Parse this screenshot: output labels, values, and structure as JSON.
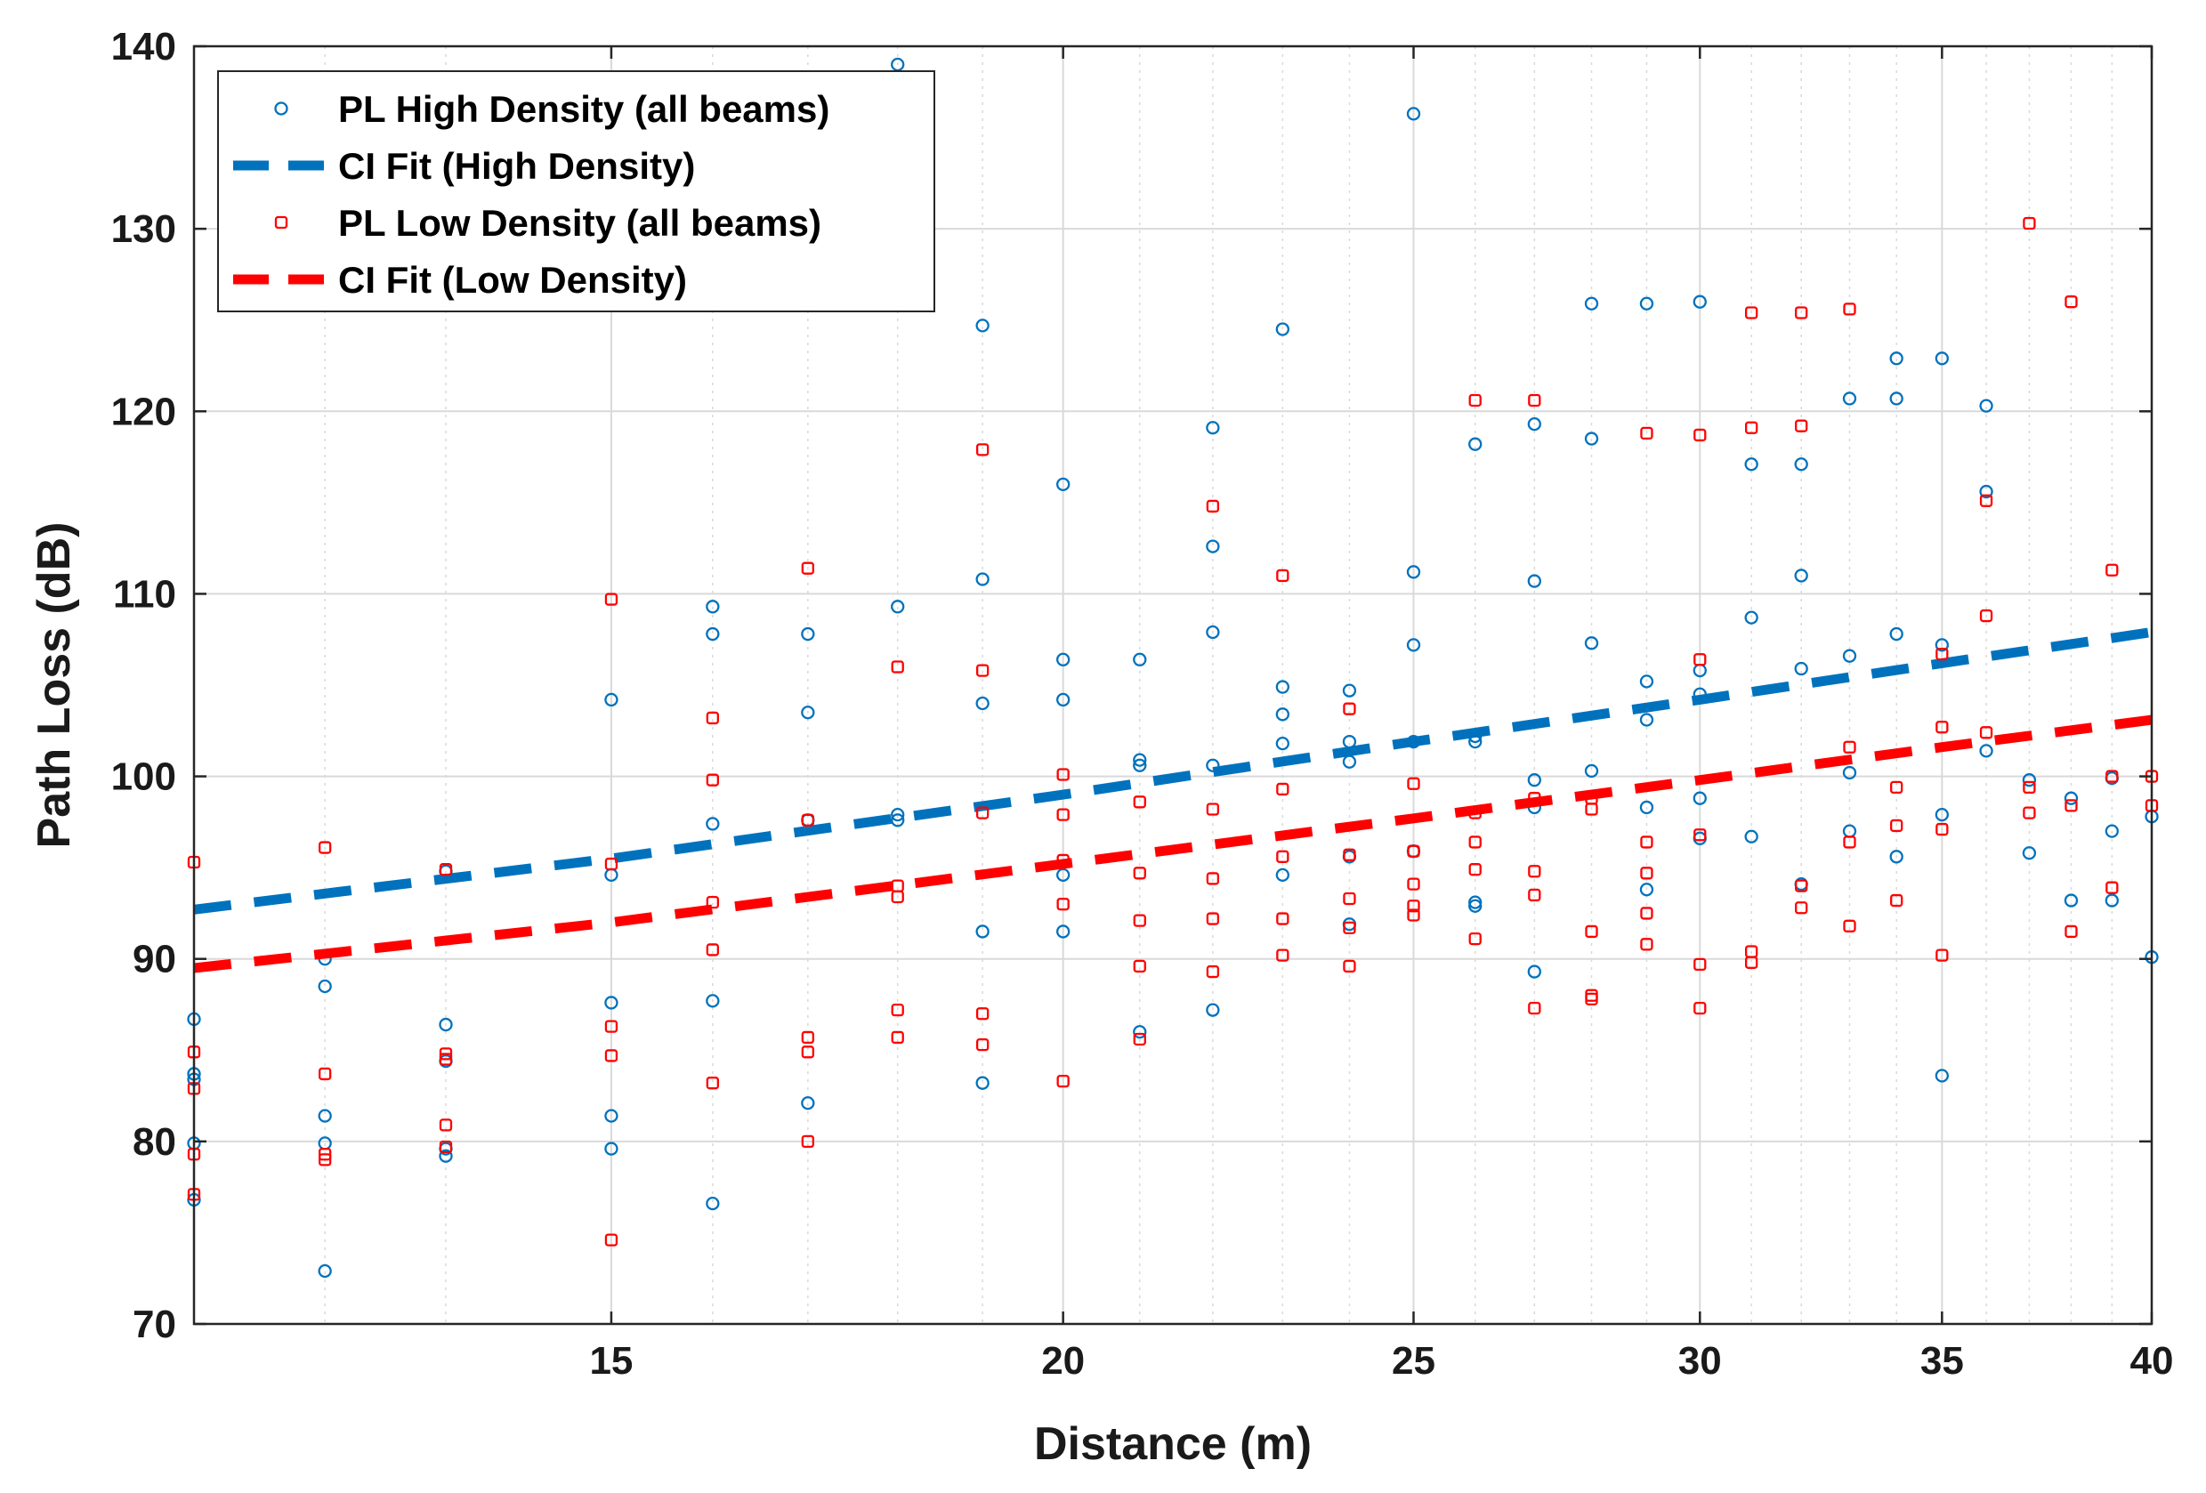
{
  "chart_data": {
    "type": "scatter",
    "title": "",
    "xlabel": "Distance (m)",
    "ylabel": "Path Loss (dB)",
    "xscale": "log",
    "xlim": [
      11.5,
      40
    ],
    "ylim": [
      70,
      140
    ],
    "xticks": [
      15,
      20,
      25,
      30,
      35,
      40
    ],
    "xtick_labels": [
      "15",
      "20",
      "25",
      "30",
      "35",
      "40"
    ],
    "yticks": [
      70,
      80,
      90,
      100,
      110,
      120,
      130,
      140
    ],
    "ytick_labels": [
      "70",
      "80",
      "90",
      "100",
      "110",
      "120",
      "130",
      "140"
    ],
    "minor_x_gridlines": [
      11.5,
      12.5,
      13.5,
      16,
      17,
      18,
      19,
      21,
      22,
      23,
      24,
      26,
      27,
      28,
      29,
      31,
      32,
      33,
      34,
      36,
      37,
      38,
      39
    ],
    "grid": true,
    "legend_position": "top-left",
    "colors": {
      "high": "#0072bd",
      "low": "#ff0000",
      "grid": "#d9d9d9",
      "axis": "#262626"
    },
    "series": [
      {
        "name": "PL High Density (all beams)",
        "kind": "points",
        "marker": "circle",
        "color": "#0072bd",
        "points": [
          [
            11.5,
            86.7
          ],
          [
            11.5,
            83.7
          ],
          [
            11.5,
            83.4
          ],
          [
            11.5,
            79.9
          ],
          [
            11.5,
            76.8
          ],
          [
            12.5,
            90.0
          ],
          [
            12.5,
            88.5
          ],
          [
            12.5,
            81.4
          ],
          [
            12.5,
            79.9
          ],
          [
            12.5,
            72.9
          ],
          [
            13.5,
            94.8
          ],
          [
            13.5,
            86.4
          ],
          [
            13.5,
            84.4
          ],
          [
            13.5,
            79.6
          ],
          [
            13.5,
            79.2
          ],
          [
            15,
            104.2
          ],
          [
            15,
            94.6
          ],
          [
            15,
            87.6
          ],
          [
            15,
            81.4
          ],
          [
            15,
            79.6
          ],
          [
            16,
            109.3
          ],
          [
            16,
            107.8
          ],
          [
            16,
            97.4
          ],
          [
            16,
            87.7
          ],
          [
            16,
            76.6
          ],
          [
            17,
            107.8
          ],
          [
            17,
            103.5
          ],
          [
            17,
            97.6
          ],
          [
            17,
            82.1
          ],
          [
            18,
            139.0
          ],
          [
            18,
            109.3
          ],
          [
            18,
            97.9
          ],
          [
            18,
            97.6
          ],
          [
            19,
            124.7
          ],
          [
            19,
            110.8
          ],
          [
            19,
            104.0
          ],
          [
            19,
            91.5
          ],
          [
            19,
            83.2
          ],
          [
            20,
            116.0
          ],
          [
            20,
            106.4
          ],
          [
            20,
            104.2
          ],
          [
            20,
            94.6
          ],
          [
            20,
            91.5
          ],
          [
            21,
            106.4
          ],
          [
            21,
            100.9
          ],
          [
            21,
            100.6
          ],
          [
            21,
            86.0
          ],
          [
            22,
            119.1
          ],
          [
            22,
            112.6
          ],
          [
            22,
            107.9
          ],
          [
            22,
            100.6
          ],
          [
            22,
            87.2
          ],
          [
            23,
            124.5
          ],
          [
            23,
            104.9
          ],
          [
            23,
            103.4
          ],
          [
            23,
            101.8
          ],
          [
            23,
            94.6
          ],
          [
            24,
            104.7
          ],
          [
            24,
            101.9
          ],
          [
            24,
            100.8
          ],
          [
            24,
            95.6
          ],
          [
            24,
            91.9
          ],
          [
            25,
            136.3
          ],
          [
            25,
            111.2
          ],
          [
            25,
            107.2
          ],
          [
            25,
            101.9
          ],
          [
            25,
            95.9
          ],
          [
            26,
            118.2
          ],
          [
            26,
            102.2
          ],
          [
            26,
            101.9
          ],
          [
            26,
            93.1
          ],
          [
            26,
            92.9
          ],
          [
            27,
            119.3
          ],
          [
            27,
            110.7
          ],
          [
            27,
            99.8
          ],
          [
            27,
            98.3
          ],
          [
            27,
            89.3
          ],
          [
            28,
            125.9
          ],
          [
            28,
            118.5
          ],
          [
            28,
            107.3
          ],
          [
            28,
            100.3
          ],
          [
            29,
            125.9
          ],
          [
            29,
            105.2
          ],
          [
            29,
            103.1
          ],
          [
            29,
            98.3
          ],
          [
            29,
            93.8
          ],
          [
            30,
            126.0
          ],
          [
            30,
            105.8
          ],
          [
            30,
            104.5
          ],
          [
            30,
            98.8
          ],
          [
            30,
            96.6
          ],
          [
            31,
            117.1
          ],
          [
            31,
            108.7
          ],
          [
            31,
            96.7
          ],
          [
            32,
            117.1
          ],
          [
            32,
            111.0
          ],
          [
            32,
            105.9
          ],
          [
            32,
            94.1
          ],
          [
            33,
            120.7
          ],
          [
            33,
            106.6
          ],
          [
            33,
            100.2
          ],
          [
            33,
            97.0
          ],
          [
            34,
            122.9
          ],
          [
            34,
            120.7
          ],
          [
            34,
            107.8
          ],
          [
            34,
            95.6
          ],
          [
            35,
            122.9
          ],
          [
            35,
            107.2
          ],
          [
            35,
            97.9
          ],
          [
            35,
            83.6
          ],
          [
            36,
            120.3
          ],
          [
            36,
            115.6
          ],
          [
            36,
            101.4
          ],
          [
            37,
            99.8
          ],
          [
            37,
            95.8
          ],
          [
            38,
            98.8
          ],
          [
            38,
            93.2
          ],
          [
            39,
            99.9
          ],
          [
            39,
            97.0
          ],
          [
            39,
            93.2
          ],
          [
            40,
            97.8
          ],
          [
            40,
            90.1
          ]
        ]
      },
      {
        "name": "CI Fit (High Density)",
        "kind": "line",
        "style": "dashed",
        "color": "#0072bd",
        "points": [
          [
            11.5,
            92.7
          ],
          [
            15,
            95.5
          ],
          [
            20,
            99.0
          ],
          [
            25,
            101.9
          ],
          [
            30,
            104.2
          ],
          [
            35,
            106.2
          ],
          [
            40,
            107.9
          ]
        ]
      },
      {
        "name": "PL Low Density (all beams)",
        "kind": "points",
        "marker": "square",
        "color": "#ff0000",
        "points": [
          [
            11.5,
            95.3
          ],
          [
            11.5,
            84.9
          ],
          [
            11.5,
            82.9
          ],
          [
            11.5,
            79.3
          ],
          [
            11.5,
            77.1
          ],
          [
            12.5,
            96.1
          ],
          [
            12.5,
            83.7
          ],
          [
            12.5,
            79.3
          ],
          [
            12.5,
            79.0
          ],
          [
            13.5,
            94.9
          ],
          [
            13.5,
            84.8
          ],
          [
            13.5,
            84.5
          ],
          [
            13.5,
            80.9
          ],
          [
            13.5,
            79.7
          ],
          [
            15,
            109.7
          ],
          [
            15,
            95.2
          ],
          [
            15,
            86.3
          ],
          [
            15,
            84.7
          ],
          [
            15,
            74.6
          ],
          [
            16,
            103.2
          ],
          [
            16,
            99.8
          ],
          [
            16,
            93.1
          ],
          [
            16,
            90.5
          ],
          [
            16,
            83.2
          ],
          [
            17,
            111.4
          ],
          [
            17,
            97.6
          ],
          [
            17,
            85.7
          ],
          [
            17,
            84.9
          ],
          [
            17,
            80.0
          ],
          [
            18,
            106.0
          ],
          [
            18,
            94.0
          ],
          [
            18,
            93.4
          ],
          [
            18,
            87.2
          ],
          [
            18,
            85.7
          ],
          [
            19,
            117.9
          ],
          [
            19,
            105.8
          ],
          [
            19,
            98.0
          ],
          [
            19,
            87.0
          ],
          [
            19,
            85.3
          ],
          [
            20,
            100.1
          ],
          [
            20,
            97.9
          ],
          [
            20,
            95.4
          ],
          [
            20,
            93.0
          ],
          [
            20,
            83.3
          ],
          [
            21,
            98.6
          ],
          [
            21,
            94.7
          ],
          [
            21,
            92.1
          ],
          [
            21,
            89.6
          ],
          [
            21,
            85.6
          ],
          [
            22,
            114.8
          ],
          [
            22,
            98.2
          ],
          [
            22,
            94.4
          ],
          [
            22,
            92.2
          ],
          [
            22,
            89.3
          ],
          [
            23,
            111.0
          ],
          [
            23,
            99.3
          ],
          [
            23,
            95.6
          ],
          [
            23,
            92.2
          ],
          [
            23,
            90.2
          ],
          [
            24,
            103.7
          ],
          [
            24,
            95.7
          ],
          [
            24,
            93.3
          ],
          [
            24,
            91.7
          ],
          [
            24,
            89.6
          ],
          [
            25,
            99.6
          ],
          [
            25,
            95.9
          ],
          [
            25,
            94.1
          ],
          [
            25,
            92.9
          ],
          [
            25,
            92.4
          ],
          [
            26,
            120.6
          ],
          [
            26,
            98.0
          ],
          [
            26,
            96.4
          ],
          [
            26,
            94.9
          ],
          [
            26,
            91.1
          ],
          [
            27,
            120.6
          ],
          [
            27,
            98.8
          ],
          [
            27,
            94.8
          ],
          [
            27,
            93.5
          ],
          [
            27,
            87.3
          ],
          [
            28,
            98.8
          ],
          [
            28,
            98.2
          ],
          [
            28,
            91.5
          ],
          [
            28,
            88.0
          ],
          [
            28,
            87.8
          ],
          [
            29,
            118.8
          ],
          [
            29,
            96.4
          ],
          [
            29,
            94.7
          ],
          [
            29,
            92.5
          ],
          [
            29,
            90.8
          ],
          [
            30,
            118.7
          ],
          [
            30,
            106.4
          ],
          [
            30,
            96.8
          ],
          [
            30,
            89.7
          ],
          [
            30,
            87.3
          ],
          [
            31,
            125.4
          ],
          [
            31,
            119.1
          ],
          [
            31,
            90.4
          ],
          [
            31,
            89.8
          ],
          [
            32,
            125.4
          ],
          [
            32,
            119.2
          ],
          [
            32,
            94.0
          ],
          [
            32,
            92.8
          ],
          [
            33,
            125.6
          ],
          [
            33,
            101.6
          ],
          [
            33,
            96.4
          ],
          [
            33,
            91.8
          ],
          [
            34,
            99.4
          ],
          [
            34,
            97.3
          ],
          [
            34,
            93.2
          ],
          [
            35,
            106.7
          ],
          [
            35,
            102.7
          ],
          [
            35,
            97.1
          ],
          [
            35,
            90.2
          ],
          [
            36,
            115.1
          ],
          [
            36,
            108.8
          ],
          [
            36,
            102.4
          ],
          [
            37,
            130.3
          ],
          [
            37,
            99.4
          ],
          [
            37,
            98.0
          ],
          [
            38,
            126.0
          ],
          [
            38,
            98.4
          ],
          [
            38,
            91.5
          ],
          [
            39,
            111.3
          ],
          [
            39,
            100.0
          ],
          [
            39,
            93.9
          ],
          [
            40,
            100.0
          ],
          [
            40,
            98.4
          ]
        ]
      },
      {
        "name": "CI Fit (Low Density)",
        "kind": "line",
        "style": "dashed",
        "color": "#ff0000",
        "points": [
          [
            11.5,
            89.5
          ],
          [
            15,
            92.0
          ],
          [
            20,
            95.2
          ],
          [
            25,
            97.7
          ],
          [
            30,
            99.8
          ],
          [
            35,
            101.6
          ],
          [
            40,
            103.1
          ]
        ]
      }
    ]
  }
}
